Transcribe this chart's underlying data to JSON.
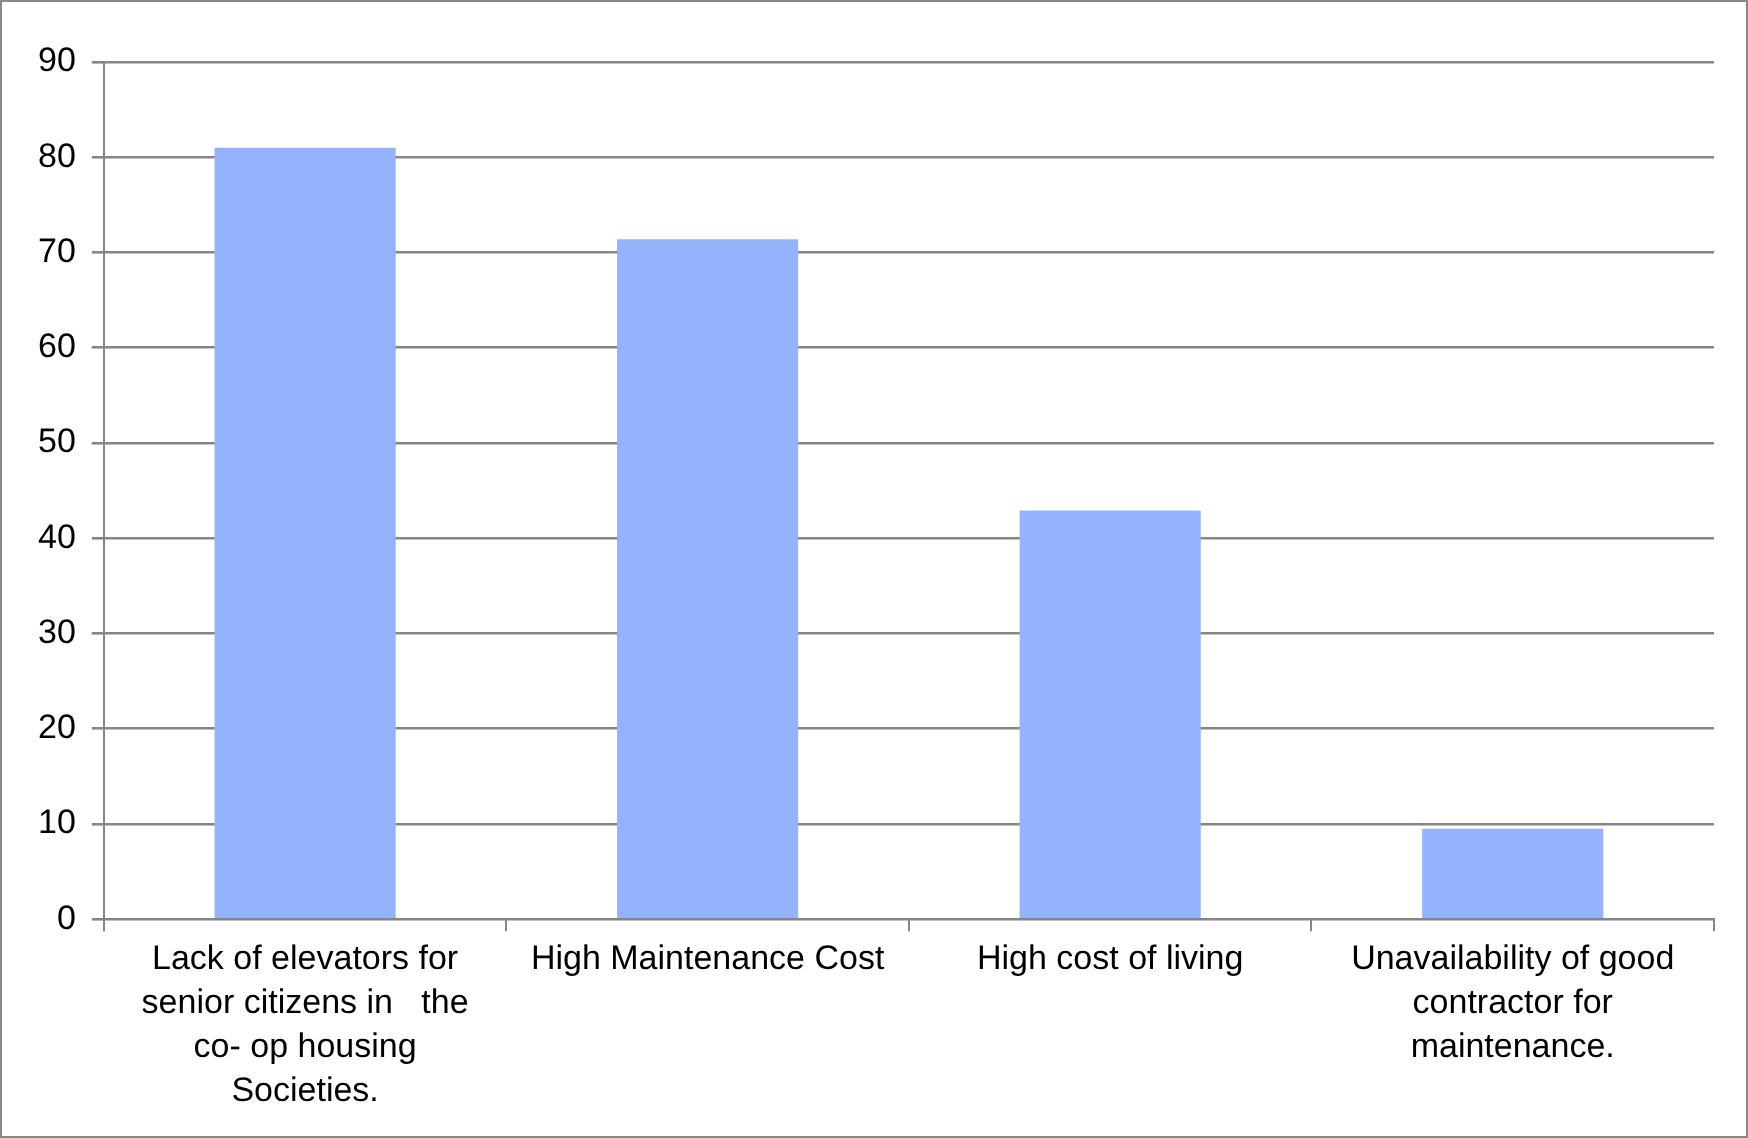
{
  "chart_data": {
    "type": "bar",
    "categories": [
      "Lack of elevators for senior citizens in   the co- op housing Societies.",
      "High Maintenance Cost",
      "High cost of living",
      "Unavailability of good contractor for maintenance."
    ],
    "values": [
      81,
      71.4,
      42.9,
      9.5
    ],
    "color": "#95b3fc",
    "ylim": [
      0,
      90
    ],
    "yticks": [
      0,
      10,
      20,
      30,
      40,
      50,
      60,
      70,
      80,
      90
    ],
    "grid": "y",
    "legend": false
  }
}
